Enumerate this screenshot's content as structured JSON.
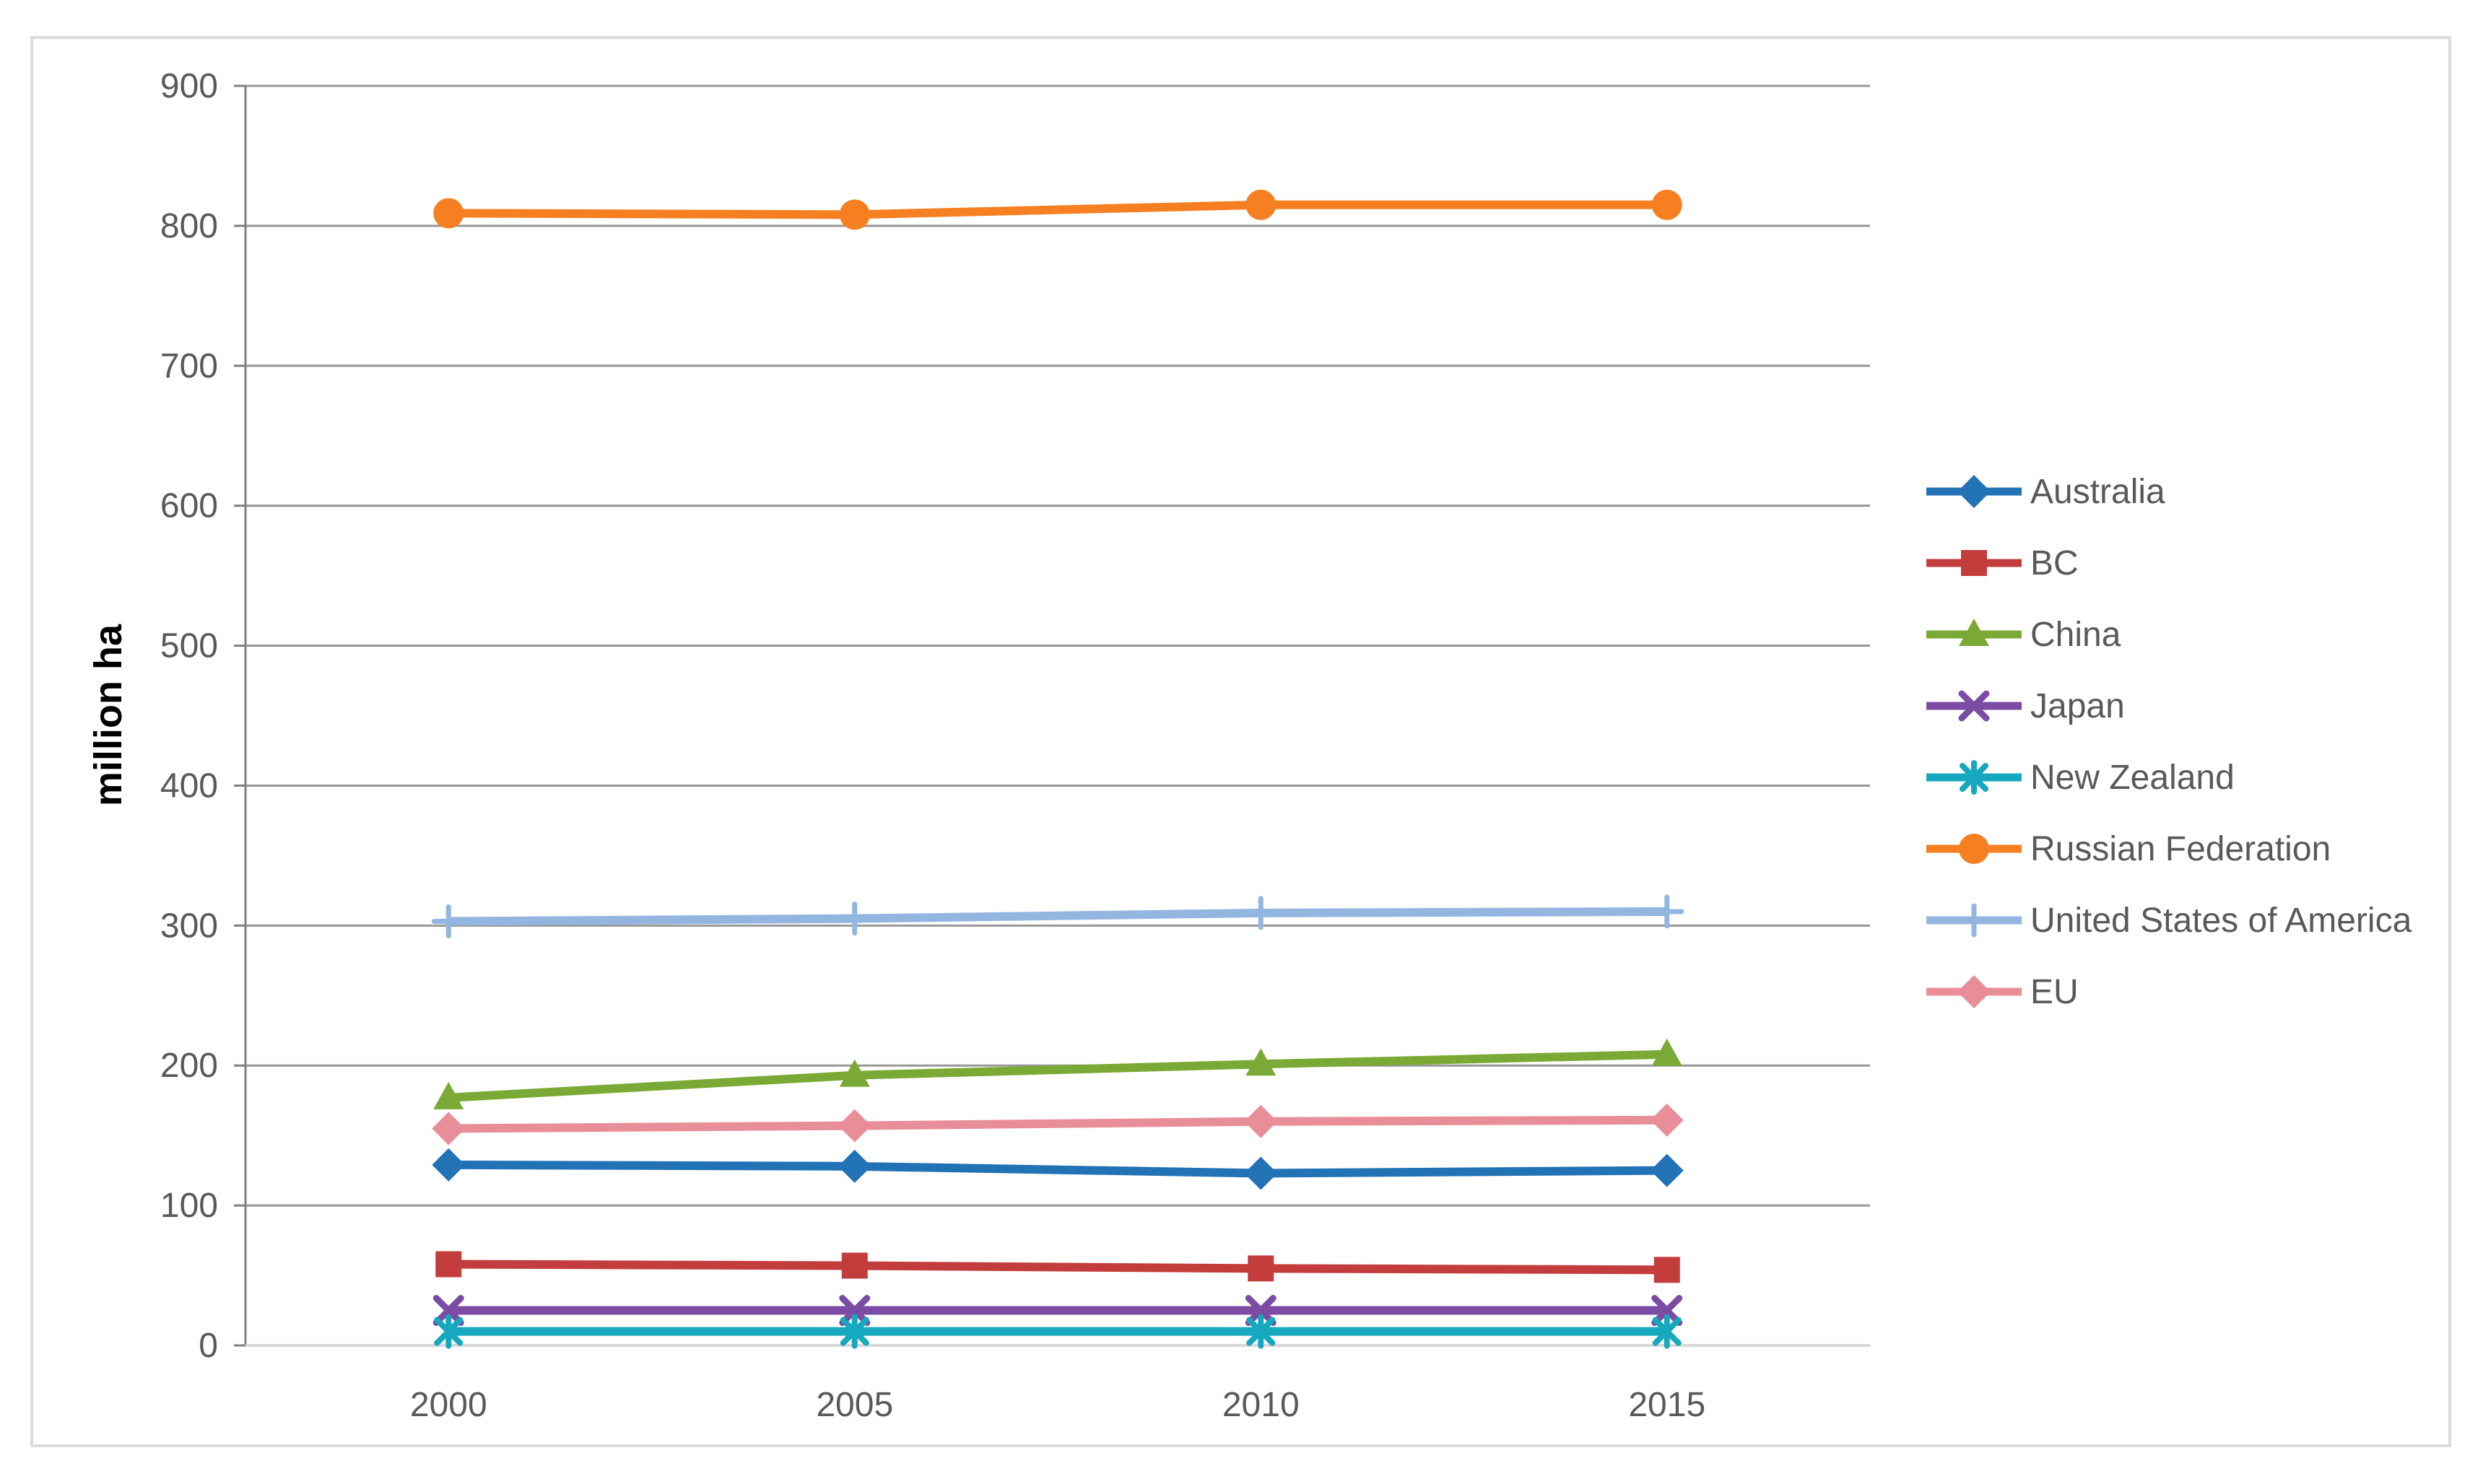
{
  "chart_data": {
    "type": "line",
    "title": "",
    "xlabel": "",
    "ylabel": "million ha",
    "categories": [
      "2000",
      "2005",
      "2010",
      "2015"
    ],
    "ylim": [
      0,
      900
    ],
    "ytick_step": 100,
    "yticks": [
      0,
      100,
      200,
      300,
      400,
      500,
      600,
      700,
      800,
      900
    ],
    "grid": true,
    "legend_position": "right",
    "series": [
      {
        "name": "Australia",
        "color": "#2272B6",
        "marker": "diamond",
        "values": [
          129,
          128,
          123,
          125
        ]
      },
      {
        "name": "BC",
        "color": "#C43D3D",
        "marker": "square",
        "values": [
          58,
          57,
          55,
          54
        ]
      },
      {
        "name": "China",
        "color": "#7AAA35",
        "marker": "triangle",
        "values": [
          177,
          193,
          201,
          208
        ]
      },
      {
        "name": "Japan",
        "color": "#7C4CA5",
        "marker": "x",
        "values": [
          25,
          25,
          25,
          25
        ]
      },
      {
        "name": "New Zealand",
        "color": "#16A8BE",
        "marker": "asterisk",
        "values": [
          10,
          10,
          10,
          10
        ]
      },
      {
        "name": "Russian Federation",
        "color": "#F57F21",
        "marker": "circle",
        "values": [
          809,
          808,
          815,
          815
        ]
      },
      {
        "name": "United States of America",
        "color": "#93B6E0",
        "marker": "plus",
        "values": [
          303,
          305,
          309,
          310
        ]
      },
      {
        "name": "EU",
        "color": "#E88E98",
        "marker": "diamond",
        "values": [
          155,
          157,
          160,
          161
        ]
      }
    ],
    "style": {
      "gridline_color": "#979797",
      "axis_line_color": "#7F7F7F",
      "bottom_axis_color": "#D8D8D8",
      "tick_label_color": "#595959",
      "legend_text_color": "#595959",
      "axis_title_color": "#000000",
      "figure_border_color": "#DBDBDB"
    }
  }
}
